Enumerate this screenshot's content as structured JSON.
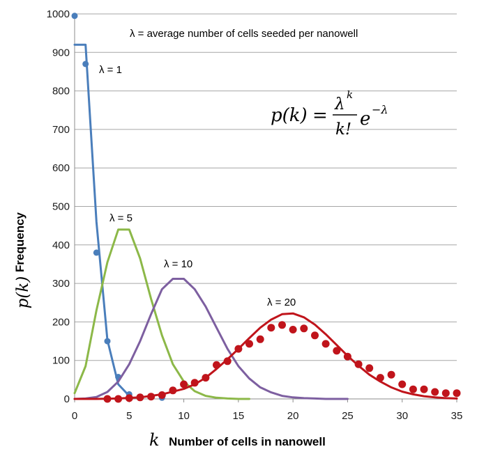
{
  "chart_data": {
    "type": "line",
    "title": "",
    "xlabel": "Number of cells in nanowell",
    "ylabel": "Frequency",
    "xlabel_symbol": "k",
    "ylabel_symbol": "p(k)",
    "xlim": [
      0,
      35
    ],
    "ylim": [
      0,
      1000
    ],
    "xticks": [
      "0",
      "5",
      "10",
      "15",
      "20",
      "25",
      "30",
      "35"
    ],
    "yticks": [
      "0",
      "100",
      "200",
      "300",
      "400",
      "500",
      "600",
      "700",
      "800",
      "900",
      "1000"
    ],
    "grid": "horizontal",
    "series": [
      {
        "name": "λ = 1",
        "color": "#4a7ebb",
        "kind": "line",
        "x": [
          0,
          1,
          2,
          3,
          4,
          5
        ],
        "y": [
          920,
          920,
          460,
          153,
          38,
          8
        ]
      },
      {
        "name": "λ = 1 (observed)",
        "color": "#4a7ebb",
        "kind": "points",
        "x": [
          0,
          1,
          2,
          3,
          4,
          5,
          8
        ],
        "y": [
          995,
          870,
          380,
          150,
          57,
          12,
          3
        ]
      },
      {
        "name": "λ = 5",
        "color": "#8cb848",
        "kind": "line",
        "x": [
          0,
          1,
          2,
          3,
          4,
          5,
          6,
          7,
          8,
          9,
          10,
          11,
          12,
          13,
          14,
          15,
          16
        ],
        "y": [
          15,
          85,
          230,
          355,
          440,
          440,
          365,
          260,
          165,
          90,
          45,
          20,
          8,
          3,
          1,
          0,
          0
        ]
      },
      {
        "name": "λ = 10",
        "color": "#7d5fa0",
        "kind": "line",
        "x": [
          0,
          1,
          2,
          3,
          4,
          5,
          6,
          7,
          8,
          9,
          10,
          11,
          12,
          13,
          14,
          15,
          16,
          17,
          18,
          19,
          20,
          21,
          22,
          23,
          24,
          25
        ],
        "y": [
          0,
          1,
          5,
          18,
          45,
          90,
          150,
          220,
          285,
          312,
          312,
          285,
          240,
          185,
          130,
          85,
          53,
          30,
          17,
          8,
          4,
          2,
          1,
          0,
          0,
          0
        ]
      },
      {
        "name": "λ = 20",
        "color": "#c0141b",
        "kind": "line",
        "x": [
          0,
          2,
          4,
          6,
          8,
          10,
          11,
          12,
          13,
          14,
          15,
          16,
          17,
          18,
          19,
          20,
          21,
          22,
          23,
          24,
          25,
          26,
          27,
          28,
          29,
          30,
          31,
          32,
          33,
          34,
          35
        ],
        "y": [
          0,
          0,
          1,
          4,
          12,
          26,
          38,
          55,
          78,
          103,
          130,
          158,
          185,
          206,
          220,
          222,
          212,
          193,
          168,
          140,
          112,
          86,
          63,
          45,
          30,
          19,
          12,
          7,
          4,
          2,
          1
        ]
      },
      {
        "name": "λ = 20 (observed)",
        "color": "#c0141b",
        "kind": "points",
        "x": [
          3,
          4,
          5,
          6,
          7,
          8,
          9,
          10,
          11,
          12,
          13,
          14,
          15,
          16,
          17,
          18,
          19,
          20,
          21,
          22,
          23,
          24,
          25,
          26,
          27,
          28,
          29,
          30,
          31,
          32,
          33,
          34,
          35
        ],
        "y": [
          0,
          0,
          2,
          4,
          6,
          10,
          22,
          38,
          42,
          55,
          88,
          98,
          130,
          143,
          155,
          185,
          192,
          180,
          183,
          165,
          143,
          125,
          110,
          90,
          80,
          55,
          63,
          38,
          25,
          25,
          18,
          15,
          15
        ]
      }
    ],
    "annotations": {
      "definition": "λ = average number of cells seeded per nanowell",
      "label_l1": "λ = 1",
      "label_l5": "λ = 5",
      "label_l10": "λ = 10",
      "label_l20": "λ = 20",
      "formula": {
        "lhs": "p(k)",
        "equals": "=",
        "numerator_base": "λ",
        "numerator_exp": "k",
        "denominator": "k!",
        "exp_base": "e",
        "exp_power": "−λ"
      }
    }
  }
}
